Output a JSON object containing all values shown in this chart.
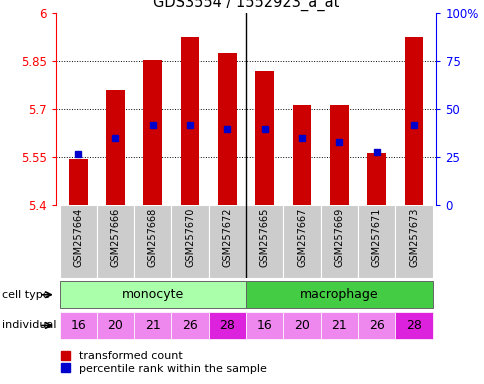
{
  "title": "GDS3554 / 1552923_a_at",
  "samples": [
    "GSM257664",
    "GSM257666",
    "GSM257668",
    "GSM257670",
    "GSM257672",
    "GSM257665",
    "GSM257667",
    "GSM257669",
    "GSM257671",
    "GSM257673"
  ],
  "transformed_counts": [
    5.545,
    5.76,
    5.855,
    5.925,
    5.875,
    5.82,
    5.715,
    5.715,
    5.565,
    5.925
  ],
  "percentile_ranks": [
    27,
    35,
    42,
    42,
    40,
    40,
    35,
    33,
    28,
    42
  ],
  "individuals": [
    "16",
    "20",
    "21",
    "26",
    "28",
    "16",
    "20",
    "21",
    "26",
    "28"
  ],
  "ylim_left": [
    5.4,
    6.0
  ],
  "ylim_right": [
    0,
    100
  ],
  "yticks_left": [
    5.4,
    5.55,
    5.7,
    5.85,
    6.0
  ],
  "yticks_right": [
    0,
    25,
    50,
    75,
    100
  ],
  "ytick_labels_left": [
    "5.4",
    "5.55",
    "5.7",
    "5.85",
    "6"
  ],
  "ytick_labels_right": [
    "0",
    "25",
    "50",
    "75",
    "100%"
  ],
  "bar_color": "#cc0000",
  "dot_color": "#0000cc",
  "bar_bottom": 5.4,
  "monocyte_color": "#aaffaa",
  "macrophage_color": "#44cc44",
  "indiv_color_normal": "#ee88ee",
  "indiv_color_28": "#dd22dd",
  "bg_color": "#ffffff",
  "label_cell_type": "cell type",
  "label_individual": "individual",
  "legend_red": "transformed count",
  "legend_blue": "percentile rank within the sample"
}
